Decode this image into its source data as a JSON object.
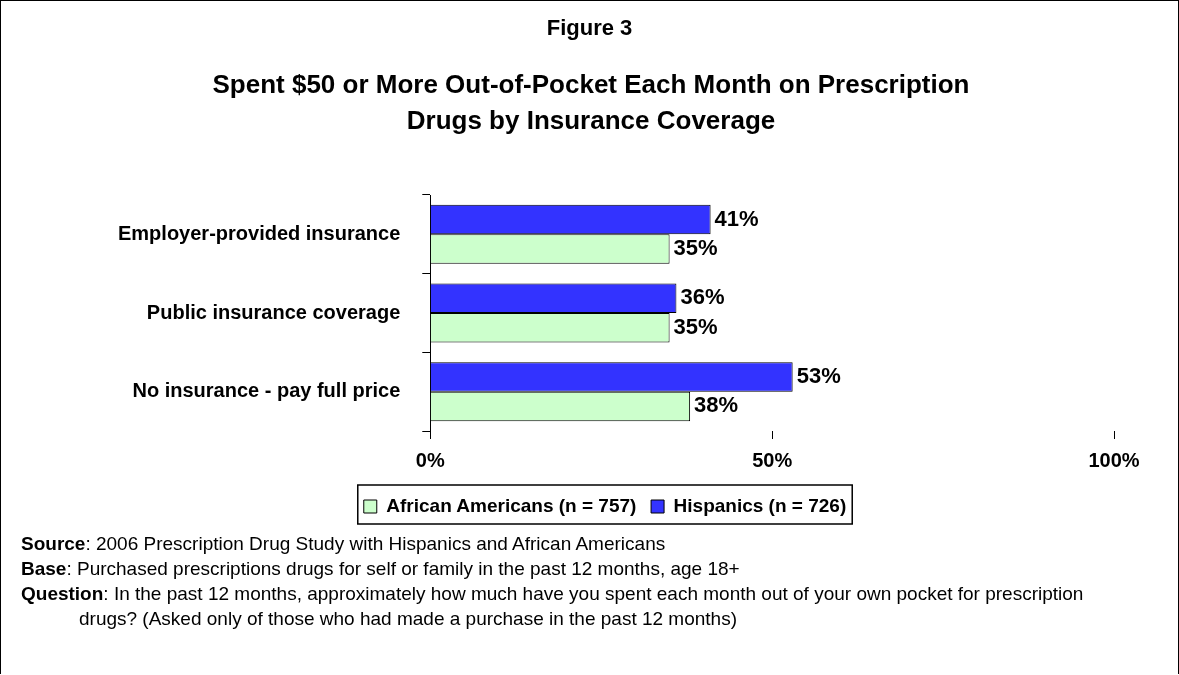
{
  "chart_data": {
    "type": "bar",
    "orientation": "horizontal",
    "title": "Figure 3",
    "subtitle": "Spent $50 or More Out-of-Pocket Each Month on Prescription Drugs by Insurance Coverage",
    "categories": [
      "Employer-provided insurance",
      "Public insurance coverage",
      "No insurance - pay full price"
    ],
    "series": [
      {
        "name": "Hispanics (n = 726)",
        "color": "#3333ff",
        "values": [
          41,
          36,
          53
        ],
        "value_labels": [
          "41%",
          "36%",
          "53%"
        ]
      },
      {
        "name": "African Americans (n = 757)",
        "color": "#ccffcc",
        "values": [
          35,
          35,
          38
        ],
        "value_labels": [
          "35%",
          "35%",
          "38%"
        ]
      }
    ],
    "xlim": [
      0,
      100
    ],
    "xticks": [
      {
        "value": 0,
        "label": "0%"
      },
      {
        "value": 50,
        "label": "50%"
      },
      {
        "value": 100,
        "label": "100%"
      }
    ],
    "grid": false,
    "legend": "bottom",
    "annotations": [
      "Source: 2006 Prescription Drug Study with Hispanics and African Americans",
      "Base: Purchased prescriptions drugs for self or family in the past 12 months, age 18+",
      "Question: In the past 12 months, approximately how much have you spent each month out of your own pocket for prescription drugs? (Asked only of those who had made a purchase in the past 12 months)"
    ]
  }
}
